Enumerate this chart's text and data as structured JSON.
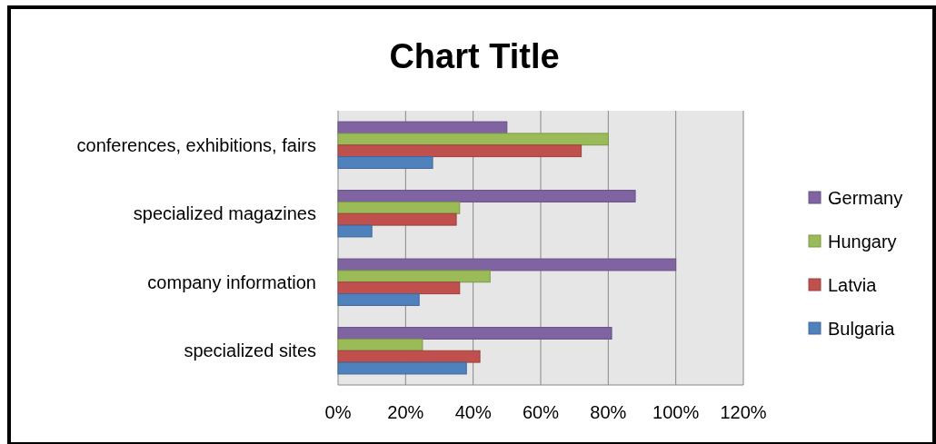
{
  "chart_data": {
    "type": "bar",
    "orientation": "horizontal",
    "title": "Chart Title",
    "categories": [
      "conferences, exhibitions, fairs",
      "specialized magazines",
      "company information",
      "specialized sites"
    ],
    "series": [
      {
        "name": "Germany",
        "color": "#8064a2",
        "values": [
          50,
          88,
          100,
          81
        ]
      },
      {
        "name": "Hungary",
        "color": "#9bbb59",
        "values": [
          80,
          36,
          45,
          25
        ]
      },
      {
        "name": "Latvia",
        "color": "#c0504d",
        "values": [
          72,
          35,
          36,
          42
        ]
      },
      {
        "name": "Bulgaria",
        "color": "#4f81bd",
        "values": [
          28,
          10,
          24,
          38
        ]
      }
    ],
    "xlim": [
      0,
      120
    ],
    "xticks": [
      {
        "value": 0,
        "label": "0%"
      },
      {
        "value": 20,
        "label": "20%"
      },
      {
        "value": 40,
        "label": "40%"
      },
      {
        "value": 60,
        "label": "60%"
      },
      {
        "value": 80,
        "label": "80%"
      },
      {
        "value": 100,
        "label": "100%"
      },
      {
        "value": 120,
        "label": "120%"
      }
    ],
    "grid": "x",
    "legend": "right"
  }
}
